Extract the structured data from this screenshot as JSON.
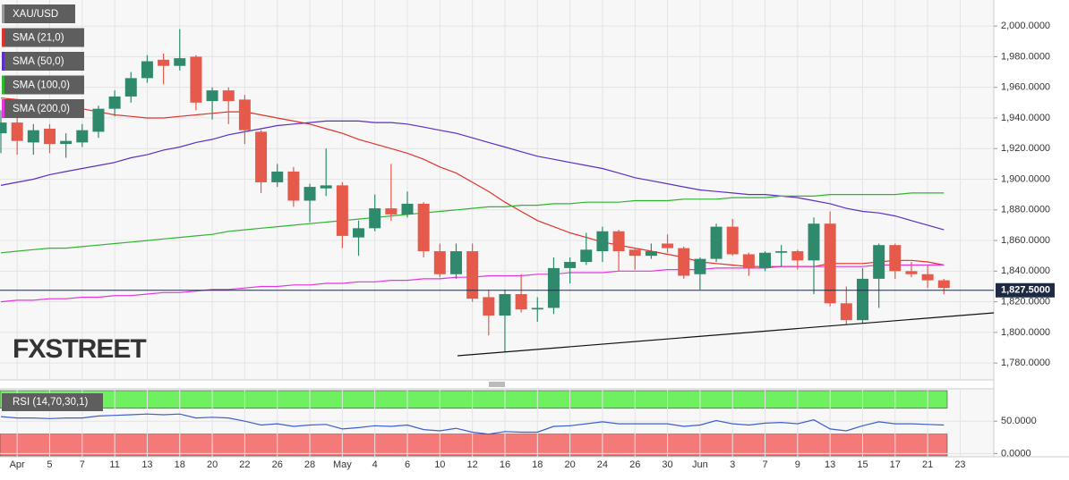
{
  "chart_data": [
    {
      "type": "candlestick",
      "name": "XAU/USD",
      "name_color": "#9a9a9a",
      "categories": [
        null,
        "Apr",
        null,
        "5",
        null,
        "7",
        null,
        "11",
        null,
        "13",
        null,
        "18",
        null,
        "20",
        null,
        "22",
        null,
        "26",
        null,
        "28",
        null,
        "May",
        null,
        "4",
        null,
        "6",
        null,
        "10",
        null,
        "12",
        null,
        "16",
        null,
        "18",
        null,
        "20",
        null,
        "24",
        null,
        "26",
        null,
        "30",
        null,
        "Jun",
        null,
        "3",
        null,
        "7",
        null,
        "9",
        null,
        "13",
        null,
        "15",
        null,
        "17",
        null,
        "21",
        null,
        "23"
      ],
      "open": [
        1930,
        1937,
        1924,
        1933,
        1923,
        1924,
        1931,
        1946,
        1954,
        1966,
        1978,
        1974,
        1980,
        1951,
        1958,
        1952,
        1931,
        1898,
        1905,
        1886,
        1894,
        1896,
        1862,
        1868,
        1881,
        1877,
        1884,
        1853,
        1838,
        1853,
        1823,
        1811,
        1825,
        1815,
        1816,
        1842,
        1846,
        1853,
        1866,
        1854,
        1850,
        1858,
        1855,
        1838,
        1848,
        1869,
        1851,
        1842,
        1852,
        1853,
        1847,
        1871,
        1819,
        1808,
        1835,
        1857,
        1840,
        1838,
        1834,
        null
      ],
      "high": [
        1945,
        1943,
        1936,
        1936,
        1930,
        1936,
        1948,
        1958,
        1970,
        1981,
        1982,
        1998,
        1981,
        1960,
        1960,
        1955,
        1932,
        1910,
        1908,
        1897,
        1920,
        1898,
        1873,
        1890,
        1910,
        1892,
        1885,
        1858,
        1858,
        1858,
        1828,
        1828,
        1838,
        1823,
        1849,
        1849,
        1865,
        1869,
        1867,
        1855,
        1858,
        1864,
        1856,
        1849,
        1871,
        1874,
        1852,
        1853,
        1857,
        1854,
        1875,
        1879,
        1830,
        1842,
        1858,
        1858,
        1846,
        1844,
        1835,
        null
      ],
      "low": [
        1917,
        1916,
        1916,
        1917,
        1914,
        1921,
        1927,
        1941,
        1950,
        1963,
        1962,
        1971,
        1945,
        1939,
        1936,
        1923,
        1891,
        1895,
        1882,
        1872,
        1889,
        1855,
        1850,
        1866,
        1873,
        1875,
        1849,
        1836,
        1835,
        1820,
        1798,
        1787,
        1813,
        1807,
        1812,
        1832,
        1844,
        1846,
        1840,
        1841,
        1848,
        1852,
        1835,
        1828,
        1846,
        1850,
        1837,
        1840,
        1843,
        1841,
        1825,
        1817,
        1805,
        1806,
        1816,
        1835,
        1836,
        1829,
        1825,
        null
      ],
      "close": [
        1937,
        1925,
        1932,
        1923,
        1925,
        1932,
        1946,
        1954,
        1966,
        1977,
        1974,
        1979,
        1950,
        1958,
        1951,
        1932,
        1898,
        1905,
        1886,
        1895,
        1896,
        1863,
        1868,
        1881,
        1877,
        1884,
        1853,
        1838,
        1853,
        1822,
        1811,
        1825,
        1815,
        1816,
        1842,
        1846,
        1854,
        1866,
        1853,
        1850,
        1853,
        1855,
        1837,
        1848,
        1869,
        1851,
        1842,
        1852,
        1853,
        1847,
        1871,
        1819,
        1808,
        1835,
        1857,
        1840,
        1838,
        1834,
        1829,
        null
      ],
      "up_color": "#2f8a6d",
      "down_color": "#e65a4c",
      "series": [
        {
          "name": "SMA (21,0)",
          "color": "#e0332b",
          "values": [
            1953,
            1952,
            1951,
            1950,
            1948,
            1946,
            1944,
            1942,
            1941,
            1940,
            1940,
            1941,
            1942,
            1943,
            1944,
            1944,
            1942,
            1940,
            1938,
            1936,
            1933,
            1930,
            1926,
            1923,
            1920,
            1917,
            1913,
            1908,
            1904,
            1898,
            1892,
            1885,
            1879,
            1873,
            1869,
            1865,
            1862,
            1859,
            1857,
            1855,
            1853,
            1851,
            1849,
            1846,
            1845,
            1844,
            1843,
            1843,
            1843,
            1843,
            1843,
            1845,
            1845,
            1845,
            1846,
            1847,
            1847,
            1846,
            1844,
            null
          ]
        },
        {
          "name": "SMA (50,0)",
          "color": "#5b2fc4",
          "values": [
            1896,
            1898,
            1900,
            1903,
            1905,
            1907,
            1909,
            1911,
            1914,
            1916,
            1919,
            1921,
            1924,
            1926,
            1929,
            1931,
            1933,
            1935,
            1936,
            1937,
            1938,
            1938,
            1938,
            1937,
            1937,
            1936,
            1934,
            1932,
            1930,
            1927,
            1924,
            1921,
            1918,
            1915,
            1913,
            1911,
            1909,
            1907,
            1904,
            1901,
            1899,
            1897,
            1895,
            1893,
            1892,
            1891,
            1890,
            1890,
            1889,
            1888,
            1886,
            1884,
            1881,
            1879,
            1878,
            1876,
            1873,
            1870,
            1867,
            null
          ]
        },
        {
          "name": "SMA (100,0)",
          "color": "#2fb52f",
          "values": [
            1852,
            1853,
            1854,
            1855,
            1855,
            1856,
            1857,
            1858,
            1859,
            1860,
            1861,
            1862,
            1863,
            1864,
            1866,
            1867,
            1868,
            1869,
            1870,
            1871,
            1872,
            1873,
            1874,
            1875,
            1876,
            1877,
            1878,
            1879,
            1880,
            1881,
            1882,
            1882,
            1883,
            1883,
            1884,
            1884,
            1885,
            1885,
            1885,
            1886,
            1886,
            1886,
            1887,
            1887,
            1887,
            1888,
            1888,
            1888,
            1889,
            1889,
            1889,
            1890,
            1890,
            1890,
            1890,
            1890,
            1891,
            1891,
            1891,
            null
          ]
        },
        {
          "name": "SMA (200,0)",
          "color": "#e535e0",
          "values": [
            1820,
            1821,
            1821,
            1822,
            1822,
            1823,
            1823,
            1824,
            1824,
            1825,
            1826,
            1826,
            1827,
            1828,
            1828,
            1829,
            1830,
            1830,
            1831,
            1831,
            1832,
            1832,
            1833,
            1833,
            1834,
            1834,
            1835,
            1835,
            1836,
            1836,
            1837,
            1837,
            1837,
            1838,
            1838,
            1839,
            1839,
            1839,
            1840,
            1840,
            1840,
            1841,
            1841,
            1841,
            1842,
            1842,
            1842,
            1842,
            1843,
            1843,
            1843,
            1843,
            1843,
            1843,
            1844,
            1844,
            1844,
            1844,
            1844,
            null
          ]
        }
      ],
      "ylim": [
        1769,
        2017
      ],
      "yticks": [
        {
          "value": 1780,
          "label": "1,780.0000"
        },
        {
          "value": 1800,
          "label": "1,800.0000"
        },
        {
          "value": 1820,
          "label": "1,820.0000"
        },
        {
          "value": 1840,
          "label": "1,840.0000"
        },
        {
          "value": 1860,
          "label": "1,860.0000"
        },
        {
          "value": 1880,
          "label": "1,880.0000"
        },
        {
          "value": 1900,
          "label": "1,900.0000"
        },
        {
          "value": 1920,
          "label": "1,920.0000"
        },
        {
          "value": 1940,
          "label": "1,940.0000"
        },
        {
          "value": 1960,
          "label": "1,960.0000"
        },
        {
          "value": 1980,
          "label": "1,980.0000"
        },
        {
          "value": 2000,
          "label": "2,000.0000"
        }
      ],
      "last_price": {
        "value": 1827.5,
        "label": "1,827.5000"
      },
      "watermark": "FXSTREET",
      "grid": true
    },
    {
      "type": "line",
      "title": "RSI (14,70,30,1)",
      "series": [
        {
          "color": "#3c5fd0",
          "values": [
            57,
            55,
            55,
            54,
            55,
            55,
            58,
            59,
            60,
            61,
            60,
            61,
            55,
            56,
            55,
            50,
            44,
            46,
            42,
            44,
            45,
            38,
            40,
            43,
            42,
            44,
            37,
            35,
            39,
            33,
            30,
            34,
            33,
            33,
            42,
            43,
            46,
            49,
            46,
            46,
            46,
            46,
            42,
            44,
            51,
            46,
            44,
            47,
            48,
            46,
            52,
            38,
            35,
            43,
            49,
            46,
            46,
            45,
            44,
            null
          ]
        }
      ],
      "overbought": 70,
      "oversold": 30,
      "overbought_color": "#6ef060",
      "oversold_color": "#f47a7a",
      "ylim": [
        -5,
        100
      ],
      "yticks": [
        {
          "value": 0,
          "label": "0.0000"
        },
        {
          "value": 50,
          "label": "50.0000"
        }
      ],
      "grid": true
    }
  ]
}
